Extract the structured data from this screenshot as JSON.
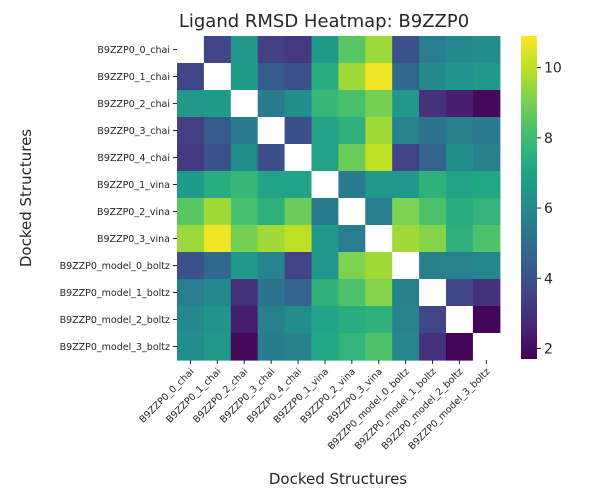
{
  "chart_data": {
    "type": "heatmap",
    "title": "Ligand RMSD Heatmap: B9ZZP0",
    "xlabel": "Docked Structures",
    "ylabel": "Docked Structures",
    "labels": [
      "B9ZZP0_0_chai",
      "B9ZZP0_1_chai",
      "B9ZZP0_2_chai",
      "B9ZZP0_3_chai",
      "B9ZZP0_4_chai",
      "B9ZZP0_1_vina",
      "B9ZZP0_2_vina",
      "B9ZZP0_3_vina",
      "B9ZZP0_model_0_boltz",
      "B9ZZP0_model_1_boltz",
      "B9ZZP0_model_2_boltz",
      "B9ZZP0_model_3_boltz"
    ],
    "matrix": [
      [
        null,
        3.6,
        6.6,
        3.4,
        3.2,
        6.7,
        8.5,
        9.5,
        4.0,
        5.6,
        6.0,
        6.1
      ],
      [
        3.6,
        null,
        6.7,
        4.3,
        4.0,
        7.4,
        9.6,
        10.7,
        4.8,
        6.0,
        6.4,
        6.6
      ],
      [
        6.6,
        6.7,
        null,
        5.5,
        6.2,
        7.8,
        8.2,
        9.0,
        6.6,
        3.0,
        2.5,
        1.9
      ],
      [
        3.4,
        4.3,
        5.5,
        null,
        3.9,
        7.0,
        7.6,
        9.6,
        5.8,
        5.2,
        5.7,
        5.5
      ],
      [
        3.2,
        4.0,
        6.2,
        3.9,
        null,
        7.0,
        8.8,
        10.0,
        3.5,
        4.6,
        6.2,
        5.7
      ],
      [
        6.7,
        7.4,
        7.8,
        7.0,
        7.0,
        null,
        5.5,
        6.6,
        6.5,
        7.6,
        7.0,
        7.2
      ],
      [
        8.5,
        9.6,
        8.2,
        7.6,
        8.8,
        5.5,
        null,
        5.6,
        9.1,
        8.3,
        7.4,
        7.7
      ],
      [
        9.5,
        10.7,
        9.0,
        9.6,
        10.0,
        6.6,
        5.6,
        null,
        9.6,
        9.2,
        7.6,
        8.3
      ],
      [
        4.0,
        4.8,
        6.6,
        5.8,
        3.5,
        6.5,
        9.1,
        9.6,
        null,
        5.7,
        5.8,
        5.9
      ],
      [
        5.6,
        6.0,
        3.0,
        5.2,
        4.6,
        7.6,
        8.3,
        9.2,
        5.7,
        null,
        3.6,
        3.0
      ],
      [
        6.0,
        6.4,
        2.5,
        5.7,
        6.2,
        7.0,
        7.4,
        7.6,
        5.8,
        3.6,
        null,
        1.8
      ],
      [
        6.1,
        6.6,
        1.9,
        5.5,
        5.7,
        7.2,
        7.7,
        8.3,
        5.9,
        3.0,
        1.8,
        null
      ]
    ],
    "colorbar": {
      "colormap": "viridis",
      "min": 1.7,
      "max": 10.9,
      "ticks": [
        2,
        4,
        6,
        8,
        10
      ]
    },
    "grid": false
  }
}
